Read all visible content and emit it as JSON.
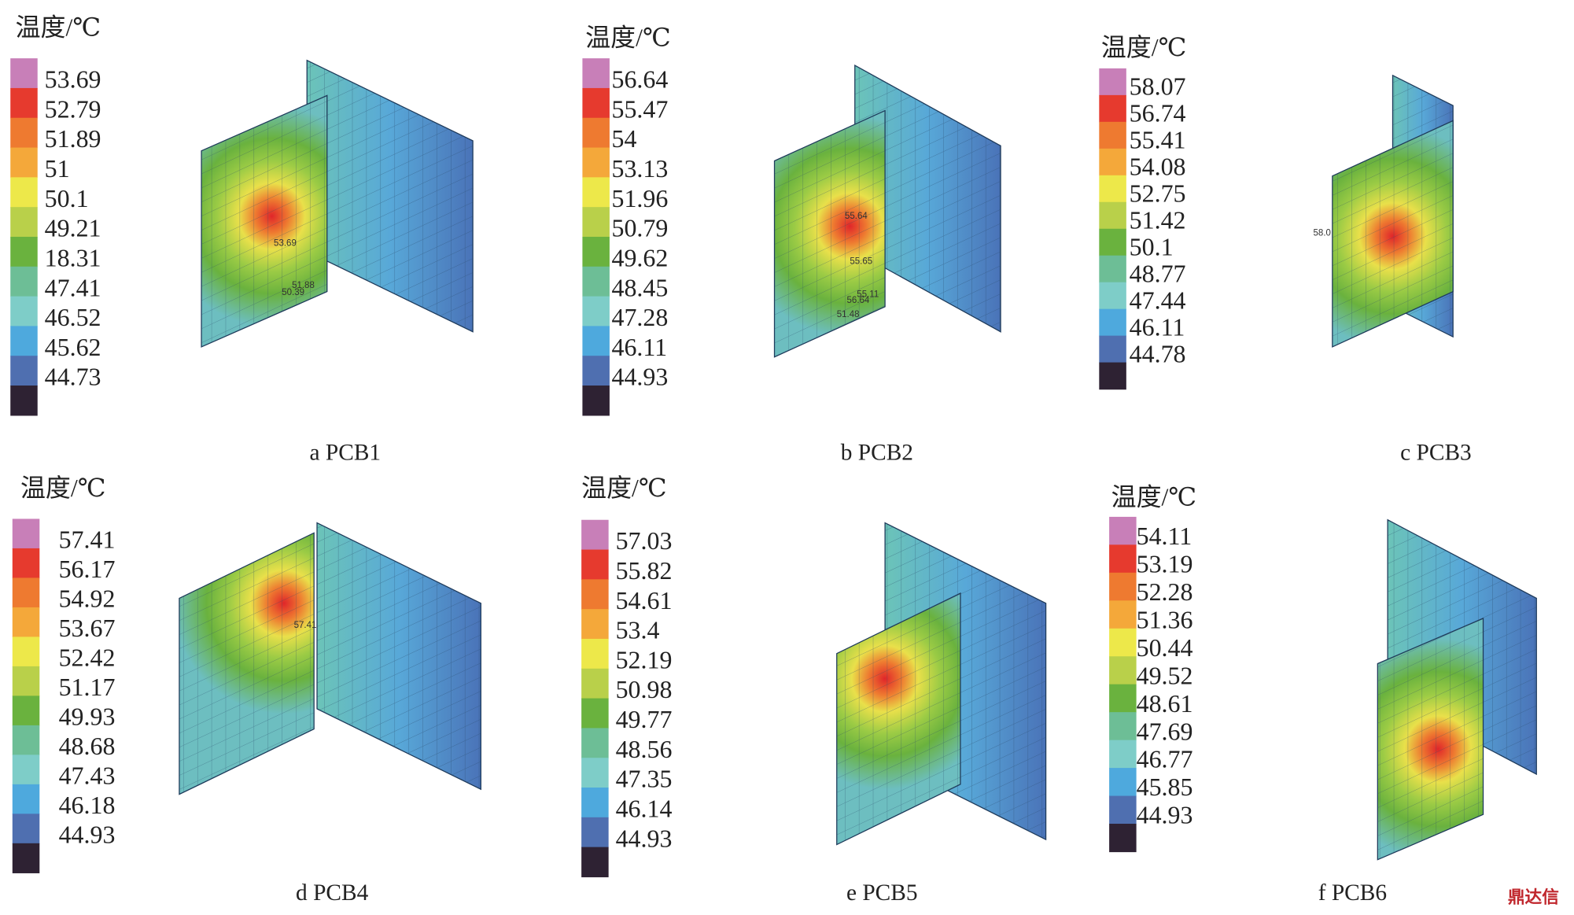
{
  "panels": [
    {
      "legend_title": "温度/℃",
      "legend_labels": [
        "53.69",
        "52.79",
        "51.89",
        "51",
        "50.1",
        "49.21",
        "18.31",
        "47.41",
        "46.52",
        "45.62",
        "44.73"
      ],
      "annotations": [
        "53.69",
        "51.88",
        "50.39"
      ],
      "caption": "a PCB1"
    },
    {
      "legend_title": "温度/℃",
      "legend_labels": [
        "56.64",
        "55.47",
        "54",
        "53.13",
        "51.96",
        "50.79",
        "49.62",
        "48.45",
        "47.28",
        "46.11",
        "44.93"
      ],
      "annotations": [
        "55.64",
        "55.65",
        "55.11",
        "56.64",
        "51.48"
      ],
      "caption": "b PCB2"
    },
    {
      "legend_title": "温度/℃",
      "legend_labels": [
        "58.07",
        "56.74",
        "55.41",
        "54.08",
        "52.75",
        "51.42",
        "50.1",
        "48.77",
        "47.44",
        "46.11",
        "44.78"
      ],
      "annotations": [
        "58.0"
      ],
      "caption": "c PCB3"
    },
    {
      "legend_title": "温度/℃",
      "legend_labels": [
        "57.41",
        "56.17",
        "54.92",
        "53.67",
        "52.42",
        "51.17",
        "49.93",
        "48.68",
        "47.43",
        "46.18",
        "44.93"
      ],
      "annotations": [
        "57.41"
      ],
      "caption": "d  PCB4"
    },
    {
      "legend_title": "温度/℃",
      "legend_labels": [
        "57.03",
        "55.82",
        "54.61",
        "53.4",
        "52.19",
        "50.98",
        "49.77",
        "48.56",
        "47.35",
        "46.14",
        "44.93"
      ],
      "annotations": [],
      "caption": "e  PCB5"
    },
    {
      "legend_title": "温度/℃",
      "legend_labels": [
        "54.11",
        "53.19",
        "52.28",
        "51.36",
        "50.44",
        "49.52",
        "48.61",
        "47.69",
        "46.77",
        "45.85",
        "44.93"
      ],
      "annotations": [],
      "caption": "f  PCB6"
    }
  ],
  "watermark": "鼎达信"
}
